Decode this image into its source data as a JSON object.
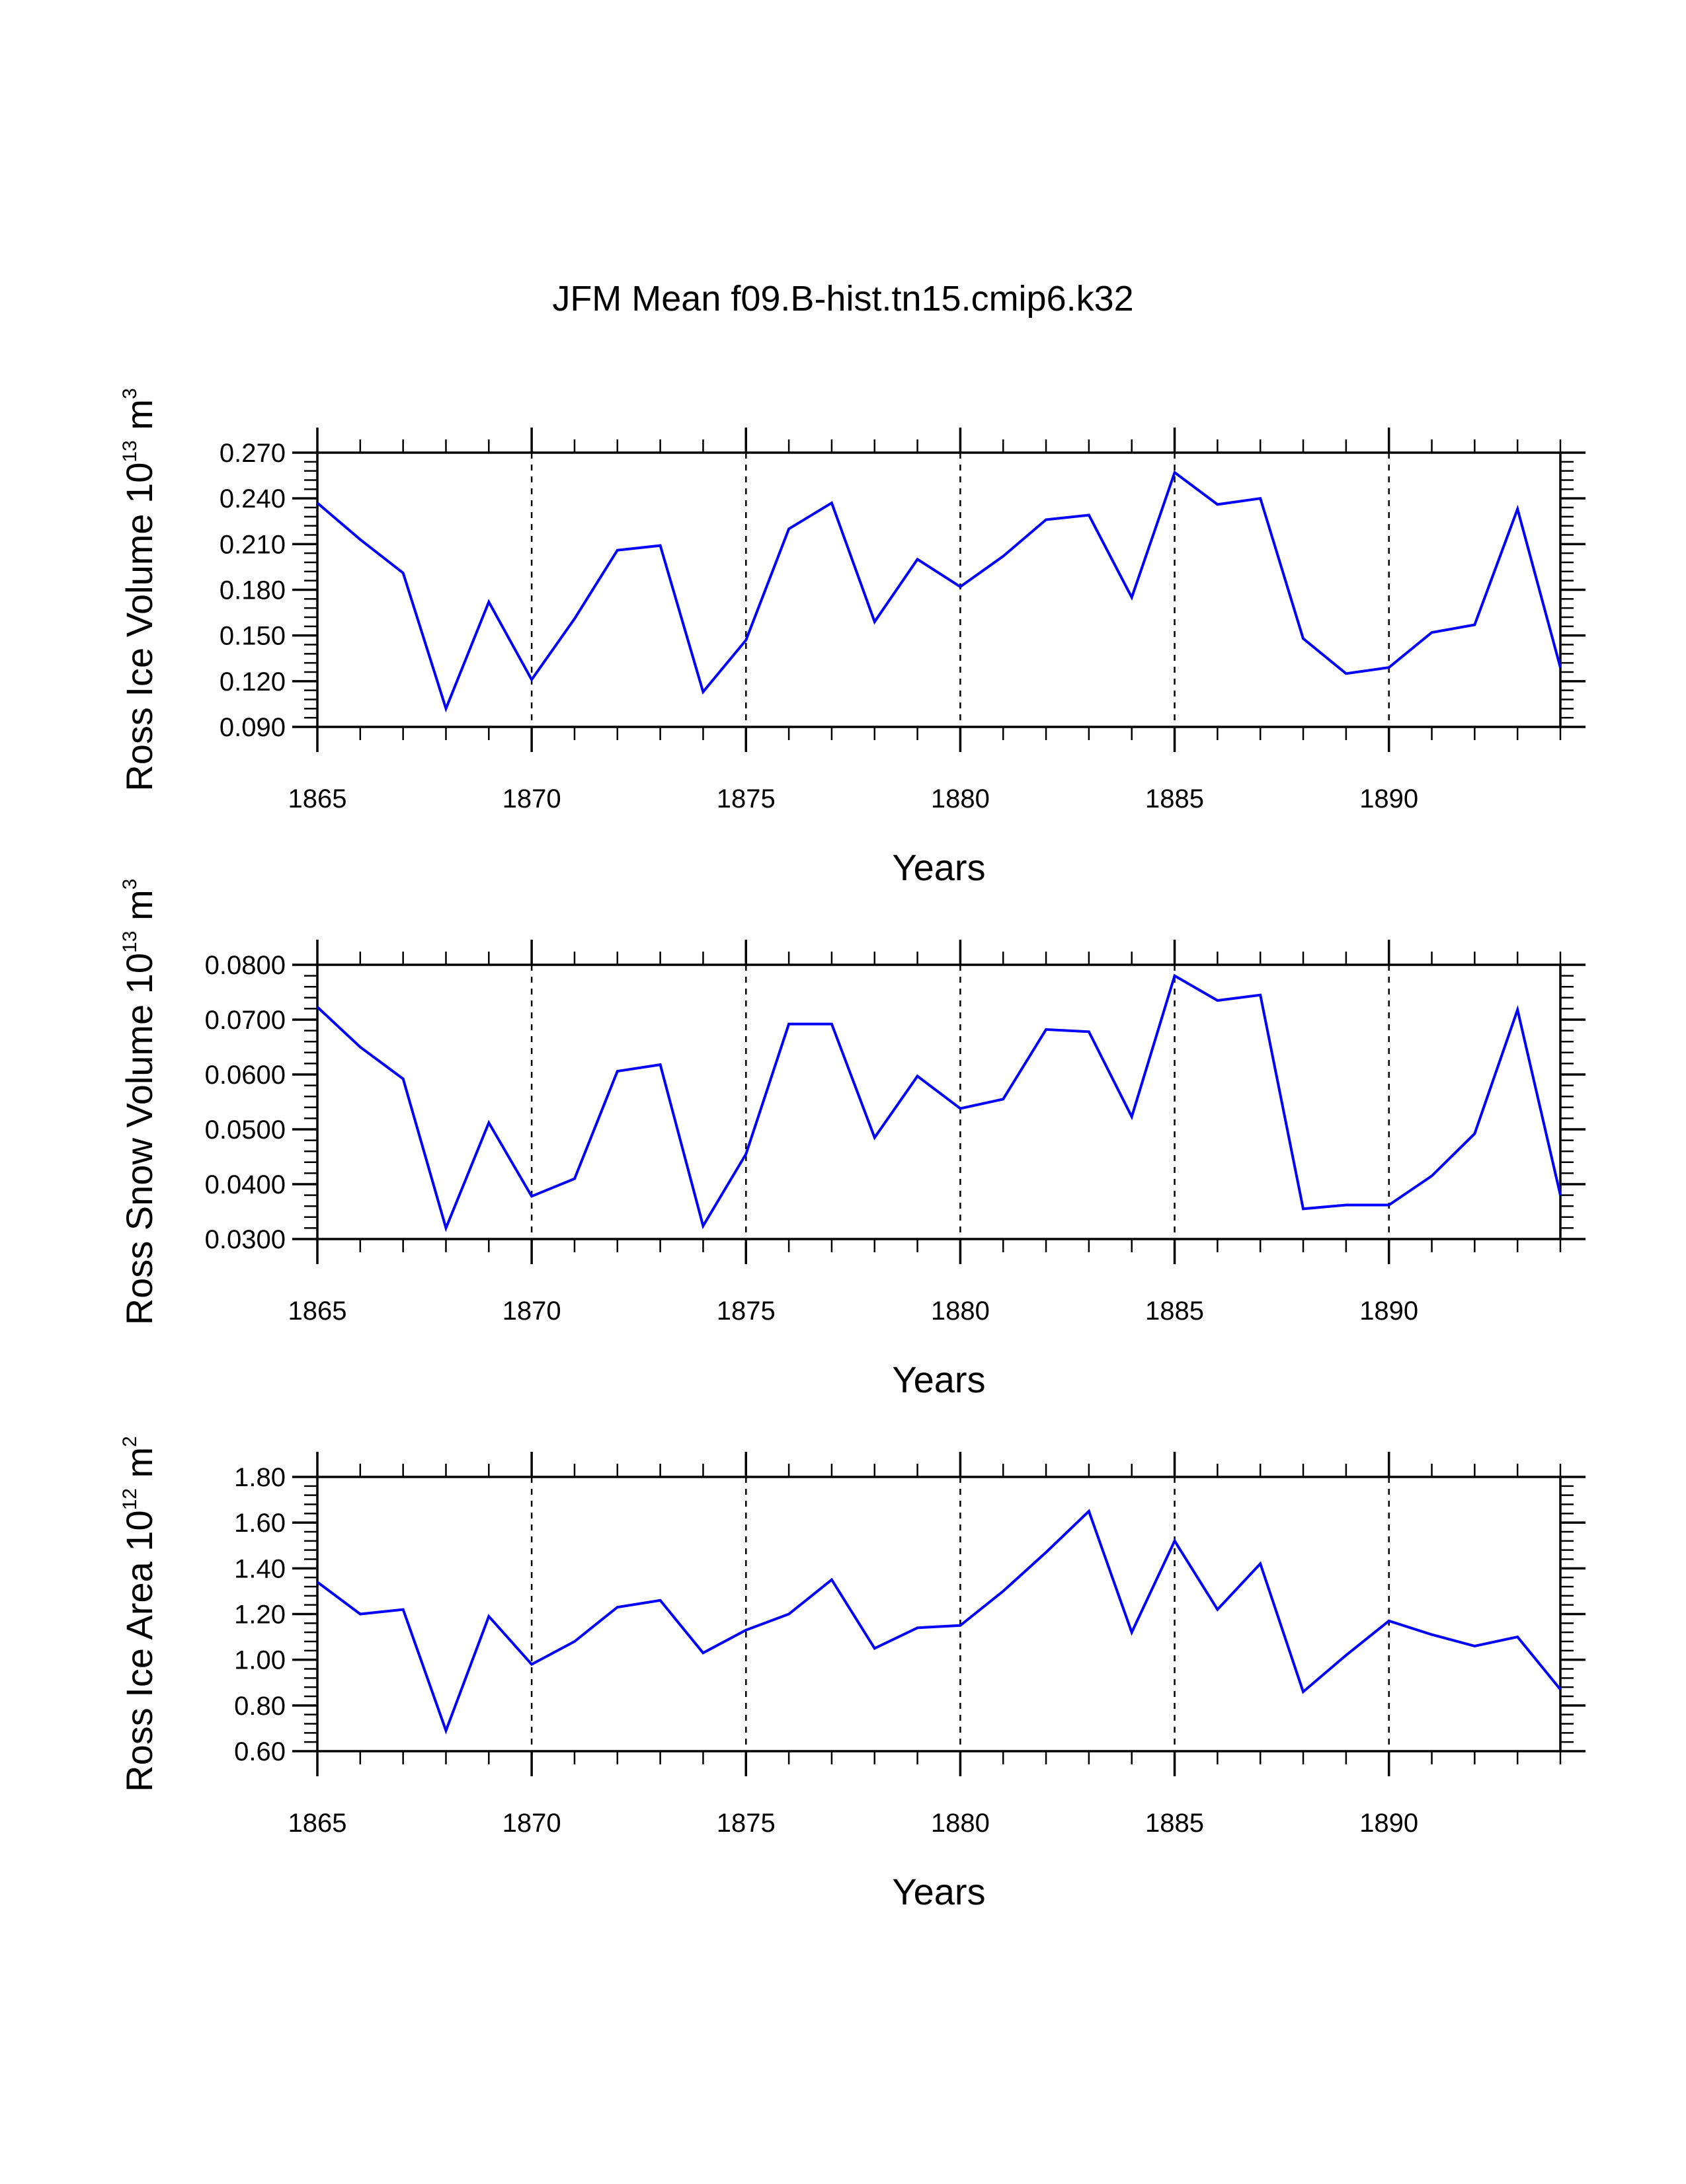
{
  "title": "JFM Mean f09.B-hist.tn15.cmip6.k32",
  "colors": {
    "line": "#0000ff",
    "axis": "#000000",
    "grid": "#000000"
  },
  "chart_data": [
    {
      "type": "line",
      "ylabel": {
        "text": "Ross Ice Volume 10",
        "exp": "13",
        "unit": " m",
        "unit_exp": "3"
      },
      "xlabel": "Years",
      "xlim": [
        1865,
        1894
      ],
      "ylim": [
        0.09,
        0.27
      ],
      "x_ticks": [
        1865,
        1870,
        1875,
        1880,
        1885,
        1890
      ],
      "x_tick_labels": [
        "1865",
        "1870",
        "1875",
        "1880",
        "1885",
        "1890"
      ],
      "y_ticks": [
        0.09,
        0.12,
        0.15,
        0.18,
        0.21,
        0.24,
        0.27
      ],
      "y_tick_labels": [
        "0.090",
        "0.120",
        "0.150",
        "0.180",
        "0.210",
        "0.240",
        "0.270"
      ],
      "grid": "vertical dashed at major x ticks",
      "series": [
        {
          "name": "Ross Ice Volume",
          "x": [
            1865,
            1866,
            1867,
            1868,
            1869,
            1870,
            1871,
            1872,
            1873,
            1874,
            1875,
            1876,
            1877,
            1878,
            1879,
            1880,
            1881,
            1882,
            1883,
            1884,
            1885,
            1886,
            1887,
            1888,
            1889,
            1890,
            1891,
            1892,
            1893,
            1894
          ],
          "values": [
            0.237,
            0.213,
            0.191,
            0.102,
            0.172,
            0.121,
            0.161,
            0.206,
            0.209,
            0.113,
            0.147,
            0.22,
            0.237,
            0.159,
            0.2,
            0.182,
            0.202,
            0.226,
            0.229,
            0.175,
            0.257,
            0.236,
            0.24,
            0.148,
            0.125,
            0.129,
            0.152,
            0.157,
            0.233,
            0.129
          ]
        }
      ]
    },
    {
      "type": "line",
      "ylabel": {
        "text": "Ross Snow Volume 10",
        "exp": "13",
        "unit": " m",
        "unit_exp": "3"
      },
      "xlabel": "Years",
      "xlim": [
        1865,
        1894
      ],
      "ylim": [
        0.03,
        0.08
      ],
      "x_ticks": [
        1865,
        1870,
        1875,
        1880,
        1885,
        1890
      ],
      "x_tick_labels": [
        "1865",
        "1870",
        "1875",
        "1880",
        "1885",
        "1890"
      ],
      "y_ticks": [
        0.03,
        0.04,
        0.05,
        0.06,
        0.07,
        0.08
      ],
      "y_tick_labels": [
        "0.0300",
        "0.0400",
        "0.0500",
        "0.0600",
        "0.0700",
        "0.0800"
      ],
      "grid": "vertical dashed at major x ticks",
      "series": [
        {
          "name": "Ross Snow Volume",
          "x": [
            1865,
            1866,
            1867,
            1868,
            1869,
            1870,
            1871,
            1872,
            1873,
            1874,
            1875,
            1876,
            1877,
            1878,
            1879,
            1880,
            1881,
            1882,
            1883,
            1884,
            1885,
            1886,
            1887,
            1888,
            1889,
            1890,
            1891,
            1892,
            1893,
            1894
          ],
          "values": [
            0.0723,
            0.065,
            0.0592,
            0.032,
            0.0512,
            0.0378,
            0.041,
            0.0606,
            0.0618,
            0.0324,
            0.0455,
            0.0692,
            0.0692,
            0.0485,
            0.0597,
            0.0538,
            0.0555,
            0.0682,
            0.0678,
            0.0523,
            0.078,
            0.0735,
            0.0745,
            0.0355,
            0.0362,
            0.0362,
            0.0415,
            0.0492,
            0.0718,
            0.038
          ]
        }
      ]
    },
    {
      "type": "line",
      "ylabel": {
        "text": "Ross Ice Area 10",
        "exp": "12",
        "unit": " m",
        "unit_exp": "2"
      },
      "xlabel": "Years",
      "xlim": [
        1865,
        1894
      ],
      "ylim": [
        0.6,
        1.8
      ],
      "x_ticks": [
        1865,
        1870,
        1875,
        1880,
        1885,
        1890
      ],
      "x_tick_labels": [
        "1865",
        "1870",
        "1875",
        "1880",
        "1885",
        "1890"
      ],
      "y_ticks": [
        0.6,
        0.8,
        1.0,
        1.2,
        1.4,
        1.6,
        1.8
      ],
      "y_tick_labels": [
        "0.60",
        "0.80",
        "1.00",
        "1.20",
        "1.40",
        "1.60",
        "1.80"
      ],
      "grid": "vertical dashed at major x ticks",
      "series": [
        {
          "name": "Ross Ice Area",
          "x": [
            1865,
            1866,
            1867,
            1868,
            1869,
            1870,
            1871,
            1872,
            1873,
            1874,
            1875,
            1876,
            1877,
            1878,
            1879,
            1880,
            1881,
            1882,
            1883,
            1884,
            1885,
            1886,
            1887,
            1888,
            1889,
            1890,
            1891,
            1892,
            1893,
            1894
          ],
          "values": [
            1.34,
            1.2,
            1.22,
            0.69,
            1.19,
            0.98,
            1.08,
            1.23,
            1.26,
            1.03,
            1.13,
            1.2,
            1.35,
            1.05,
            1.14,
            1.15,
            1.3,
            1.47,
            1.65,
            1.12,
            1.52,
            1.22,
            1.42,
            0.86,
            1.02,
            1.17,
            1.11,
            1.06,
            1.1,
            0.87
          ]
        }
      ]
    }
  ]
}
